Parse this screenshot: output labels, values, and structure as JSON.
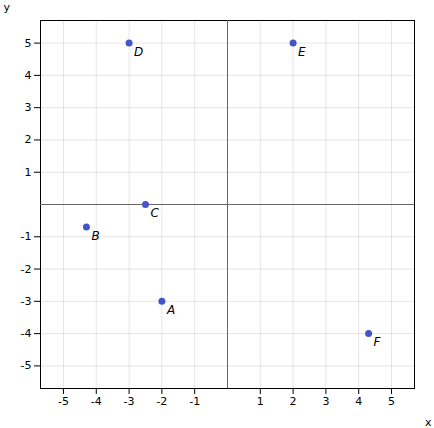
{
  "chart_data": {
    "type": "scatter",
    "x": [
      -2,
      -4.3,
      -2.5,
      -3,
      2,
      4.3
    ],
    "values": [
      -3,
      -0.7,
      0,
      5,
      5,
      -4
    ],
    "labels": [
      "A",
      "B",
      "C",
      "D",
      "E",
      "F"
    ],
    "color": "#4455cc",
    "xlabel": "x",
    "ylabel": "y",
    "xlim": [
      -5.7,
      5.7
    ],
    "ylim": [
      -5.7,
      5.7
    ],
    "xticks": [
      -5,
      -4,
      -3,
      -2,
      -1,
      1,
      2,
      3,
      4,
      5
    ],
    "yticks": [
      -5,
      -4,
      -3,
      -2,
      -1,
      1,
      2,
      3,
      4,
      5
    ],
    "grid": true
  }
}
